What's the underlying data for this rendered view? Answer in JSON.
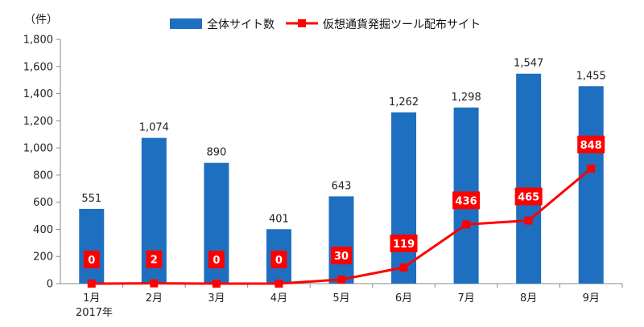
{
  "chart_data": {
    "type": "bar+line",
    "y_unit_label": "（件）",
    "categories": [
      "1月",
      "2月",
      "3月",
      "4月",
      "5月",
      "6月",
      "7月",
      "8月",
      "9月"
    ],
    "year_label": "2017年",
    "ylim": [
      0,
      1800
    ],
    "yticks": [
      "0",
      "200",
      "400",
      "600",
      "800",
      "1,000",
      "1,200",
      "1,400",
      "1,600",
      "1,800"
    ],
    "legend_position": "top-center",
    "series": [
      {
        "name": "全体サイト数",
        "type": "bar",
        "color": "#1f6fc0",
        "values": [
          551,
          1074,
          890,
          401,
          643,
          1262,
          1298,
          1547,
          1455
        ],
        "labels": [
          "551",
          "1,074",
          "890",
          "401",
          "643",
          "1,262",
          "1,298",
          "1,547",
          "1,455"
        ]
      },
      {
        "name": "仮想通貨発掘ツール配布サイト",
        "type": "line",
        "color": "#ff0000",
        "values": [
          0,
          2,
          0,
          0,
          30,
          119,
          436,
          465,
          848
        ],
        "labels": [
          "0",
          "2",
          "0",
          "0",
          "30",
          "119",
          "436",
          "465",
          "848"
        ]
      }
    ]
  }
}
